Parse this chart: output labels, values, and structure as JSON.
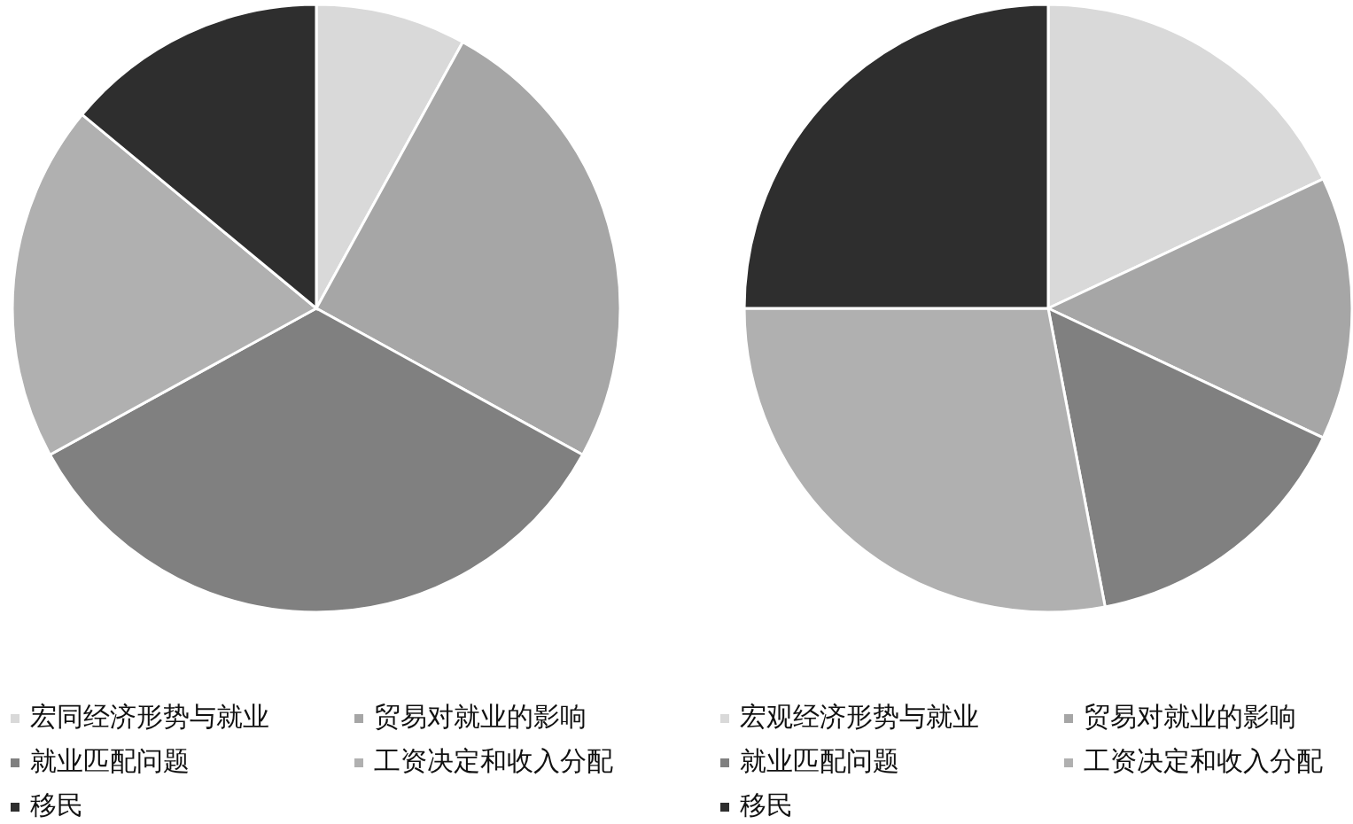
{
  "chart_data": [
    {
      "type": "pie",
      "categories": [
        "宏同经济形势与就业",
        "贸易对就业的影响",
        "就业匹配问题",
        "工资决定和收入分配",
        "移民"
      ],
      "values": [
        8,
        25,
        34,
        19,
        14
      ],
      "colors": [
        "#d9d9d9",
        "#a6a6a6",
        "#808080",
        "#b0b0b0",
        "#2e2e2e"
      ],
      "legend": "bottom"
    },
    {
      "type": "pie",
      "categories": [
        "宏观经济形势与就业",
        "贸易对就业的影响",
        "就业匹配问题",
        "工资决定和收入分配",
        "移民"
      ],
      "values": [
        18,
        14,
        15,
        28,
        25
      ],
      "colors": [
        "#d9d9d9",
        "#a6a6a6",
        "#808080",
        "#b0b0b0",
        "#2e2e2e"
      ],
      "legend": "bottom"
    }
  ]
}
